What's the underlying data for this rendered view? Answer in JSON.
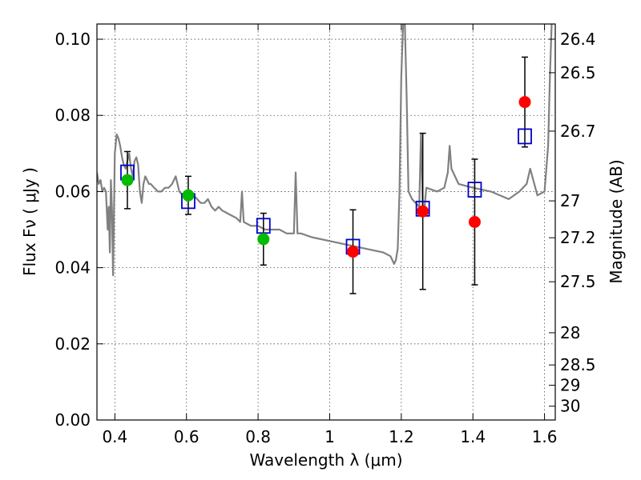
{
  "chart_data": {
    "type": "scatter",
    "title": "",
    "xlabel": "Wavelength  λ (μm)",
    "ylabel": "Flux  Fν  ( μJy )",
    "y2label": "Magnitude (AB)",
    "xlim": [
      0.35,
      1.63
    ],
    "ylim": [
      0.0,
      0.104
    ],
    "grid": true,
    "x_ticks": [
      {
        "value": 0.4,
        "label": "0.4"
      },
      {
        "value": 0.6,
        "label": "0.6"
      },
      {
        "value": 0.8,
        "label": "0.8"
      },
      {
        "value": 1.0,
        "label": "1"
      },
      {
        "value": 1.2,
        "label": "1.2"
      },
      {
        "value": 1.4,
        "label": "1.4"
      },
      {
        "value": 1.6,
        "label": "1.6"
      }
    ],
    "y_ticks": [
      {
        "value": 0.0,
        "label": "0.00"
      },
      {
        "value": 0.02,
        "label": "0.02"
      },
      {
        "value": 0.04,
        "label": "0.04"
      },
      {
        "value": 0.06,
        "label": "0.06"
      },
      {
        "value": 0.08,
        "label": "0.08"
      },
      {
        "value": 0.1,
        "label": "0.10"
      }
    ],
    "y2_ticks": [
      {
        "value": 26.4,
        "label": "26.4"
      },
      {
        "value": 26.5,
        "label": "26.5"
      },
      {
        "value": 26.7,
        "label": "26.7"
      },
      {
        "value": 27.0,
        "label": "27"
      },
      {
        "value": 27.2,
        "label": "27.2"
      },
      {
        "value": 27.5,
        "label": "27.5"
      },
      {
        "value": 28.0,
        "label": "28"
      },
      {
        "value": 28.5,
        "label": "28.5"
      },
      {
        "value": 29.0,
        "label": "29"
      },
      {
        "value": 30.0,
        "label": "30"
      }
    ],
    "series": [
      {
        "kind": "line",
        "color": "#808080",
        "x": [
          0.35,
          0.355,
          0.36,
          0.365,
          0.37,
          0.375,
          0.38,
          0.383,
          0.386,
          0.389,
          0.392,
          0.395,
          0.4,
          0.405,
          0.41,
          0.415,
          0.42,
          0.425,
          0.43,
          0.435,
          0.44,
          0.445,
          0.45,
          0.455,
          0.46,
          0.465,
          0.47,
          0.475,
          0.48,
          0.485,
          0.49,
          0.495,
          0.5,
          0.51,
          0.52,
          0.53,
          0.54,
          0.55,
          0.56,
          0.57,
          0.58,
          0.59,
          0.6,
          0.61,
          0.62,
          0.63,
          0.64,
          0.65,
          0.66,
          0.67,
          0.68,
          0.69,
          0.7,
          0.72,
          0.74,
          0.75,
          0.755,
          0.76,
          0.78,
          0.8,
          0.82,
          0.84,
          0.86,
          0.88,
          0.9,
          0.905,
          0.91,
          0.92,
          0.95,
          1.0,
          1.05,
          1.1,
          1.15,
          1.17,
          1.18,
          1.185,
          1.19,
          1.195,
          1.2,
          1.205,
          1.21,
          1.215,
          1.22,
          1.23,
          1.25,
          1.255,
          1.26,
          1.265,
          1.27,
          1.3,
          1.32,
          1.33,
          1.335,
          1.34,
          1.36,
          1.4,
          1.45,
          1.5,
          1.53,
          1.55,
          1.56,
          1.58,
          1.6,
          1.61,
          1.615,
          1.62
        ],
        "y": [
          0.065,
          0.062,
          0.063,
          0.06,
          0.061,
          0.06,
          0.05,
          0.056,
          0.044,
          0.063,
          0.055,
          0.038,
          0.07,
          0.075,
          0.074,
          0.072,
          0.069,
          0.067,
          0.066,
          0.068,
          0.07,
          0.066,
          0.064,
          0.068,
          0.069,
          0.067,
          0.06,
          0.057,
          0.062,
          0.064,
          0.063,
          0.062,
          0.062,
          0.061,
          0.06,
          0.06,
          0.061,
          0.061,
          0.062,
          0.064,
          0.06,
          0.059,
          0.059,
          0.058,
          0.059,
          0.058,
          0.057,
          0.057,
          0.058,
          0.056,
          0.055,
          0.056,
          0.055,
          0.054,
          0.053,
          0.052,
          0.06,
          0.052,
          0.051,
          0.051,
          0.05,
          0.05,
          0.05,
          0.049,
          0.049,
          0.065,
          0.049,
          0.049,
          0.048,
          0.047,
          0.046,
          0.045,
          0.044,
          0.043,
          0.041,
          0.042,
          0.045,
          0.06,
          0.09,
          0.104,
          0.104,
          0.085,
          0.06,
          0.058,
          0.056,
          0.075,
          0.055,
          0.056,
          0.061,
          0.06,
          0.061,
          0.065,
          0.072,
          0.066,
          0.062,
          0.061,
          0.06,
          0.058,
          0.06,
          0.062,
          0.066,
          0.059,
          0.06,
          0.072,
          0.09,
          0.104
        ]
      },
      {
        "kind": "points",
        "marker": "square",
        "color": "#0000cc",
        "x": [
          0.435,
          0.605,
          0.815,
          1.065,
          1.26,
          1.405,
          1.545
        ],
        "y": [
          0.065,
          0.0575,
          0.051,
          0.0455,
          0.0555,
          0.0605,
          0.0745
        ]
      },
      {
        "kind": "points",
        "marker": "circle",
        "color": "#00bb00",
        "x": [
          0.435,
          0.605,
          0.815
        ],
        "y": [
          0.063,
          0.059,
          0.0475
        ],
        "yerr": [
          0.0075,
          0.005,
          0.0068
        ]
      },
      {
        "kind": "points",
        "marker": "circle",
        "color": "#ff0000",
        "x": [
          1.065,
          1.26,
          1.405,
          1.545
        ],
        "y": [
          0.0442,
          0.0548,
          0.052,
          0.0835
        ],
        "yerr": [
          0.011,
          0.0205,
          0.0165,
          0.0118
        ]
      }
    ]
  }
}
